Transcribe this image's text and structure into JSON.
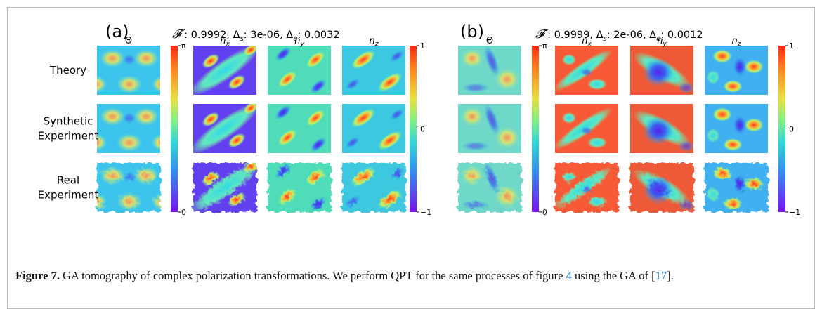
{
  "panels": [
    {
      "label": "(a)",
      "metrics": [
        {
          "text": "𝓕"
        },
        {
          "text": " : 0.9992, Δ"
        },
        {
          "text": "s",
          "sub": true
        },
        {
          "text": ": 3e-06, Δ"
        },
        {
          "text": "e",
          "sub": true
        },
        {
          "text": ": 0.0032"
        }
      ],
      "columns": [
        {
          "text": "Θ"
        },
        {
          "text": "n",
          "sub": "x"
        },
        {
          "text": "n",
          "sub": "y"
        },
        {
          "text": "n",
          "sub": "z"
        }
      ],
      "colorbars": [
        {
          "ticks": [
            "π",
            "0"
          ]
        },
        {
          "ticks": [
            "1",
            "0",
            "−1"
          ]
        }
      ]
    },
    {
      "label": "(b)",
      "metrics": [
        {
          "text": "𝓕"
        },
        {
          "text": " : 0.9999, Δ"
        },
        {
          "text": "s",
          "sub": true
        },
        {
          "text": ": 2e-06, Δ"
        },
        {
          "text": "e",
          "sub": true
        },
        {
          "text": ": 0.0012"
        }
      ],
      "columns": [
        {
          "text": "Θ"
        },
        {
          "text": "n",
          "sub": "x"
        },
        {
          "text": "n",
          "sub": "y"
        },
        {
          "text": "n",
          "sub": "z"
        }
      ],
      "colorbars": [
        {
          "ticks": [
            "π",
            "0"
          ]
        },
        {
          "ticks": [
            "1",
            "0",
            "−1"
          ]
        }
      ]
    }
  ],
  "rows": [
    [
      "Theory"
    ],
    [
      "Synthetic",
      "Experiment"
    ],
    [
      "Real",
      "Experiment"
    ]
  ],
  "caption": [
    {
      "text": "Figure 7.",
      "bold": true
    },
    {
      "text": " GA tomography of complex polarization transformations. We perform QPT for the same processes of figure "
    },
    {
      "text": "4",
      "link": true
    },
    {
      "text": " using the GA of ["
    },
    {
      "text": "17",
      "link": true
    },
    {
      "text": "]."
    }
  ]
}
